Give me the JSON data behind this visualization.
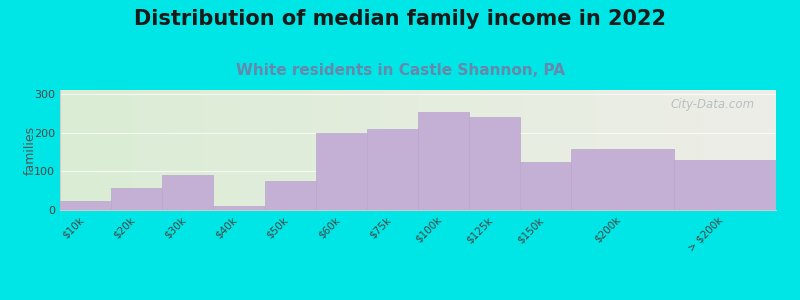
{
  "title": "Distribution of median family income in 2022",
  "subtitle": "White residents in Castle Shannon, PA",
  "categories": [
    "$10k",
    "$20k",
    "$30k",
    "$40k",
    "$50k",
    "$60k",
    "$75k",
    "$100k",
    "$125k",
    "$150k",
    "$200k",
    "> $200k"
  ],
  "values": [
    22,
    57,
    90,
    10,
    75,
    198,
    210,
    252,
    240,
    125,
    158,
    130
  ],
  "bar_color": "#c4b0d5",
  "bar_edge_color": "#b8a8cc",
  "background_color": "#00e5e5",
  "plot_bg_color_left": "#daecd4",
  "plot_bg_color_right": "#eeeee8",
  "title_fontsize": 15,
  "subtitle_fontsize": 11,
  "subtitle_color": "#6688aa",
  "ylabel": "families",
  "ylim": [
    0,
    310
  ],
  "yticks": [
    0,
    100,
    200,
    300
  ],
  "watermark": "City-Data.com",
  "watermark_color": "#b0b8b8",
  "bar_widths": [
    1,
    1,
    1,
    1,
    1,
    1,
    1,
    1,
    1,
    1,
    2,
    2
  ],
  "bar_positions": [
    0.5,
    1.5,
    2.5,
    3.5,
    4.5,
    5.5,
    6.5,
    7.5,
    8.5,
    9.5,
    11.0,
    13.0
  ]
}
